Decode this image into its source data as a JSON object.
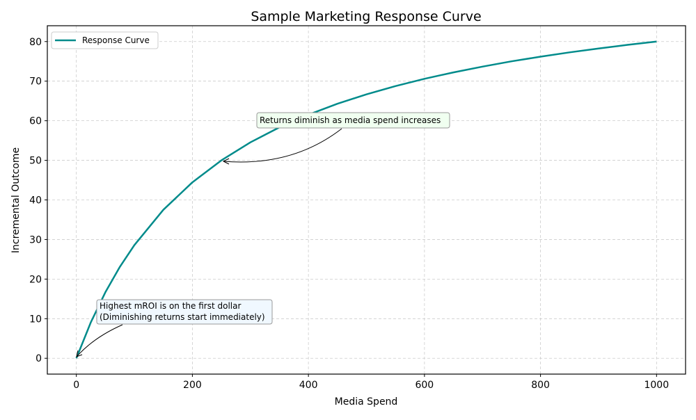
{
  "chart_data": {
    "type": "line",
    "title": "Sample Marketing Response Curve",
    "xlabel": "Media Spend",
    "ylabel": "Incremental Outcome",
    "xlim": [
      -50,
      1050
    ],
    "ylim": [
      -4,
      84
    ],
    "xticks": [
      0,
      200,
      400,
      600,
      800,
      1000
    ],
    "yticks": [
      0,
      10,
      20,
      30,
      40,
      50,
      60,
      70,
      80
    ],
    "grid": true,
    "legend_position": "top-left",
    "series": [
      {
        "name": "Response Curve",
        "color": "#008b8b",
        "x": [
          0,
          25,
          50,
          75,
          100,
          150,
          200,
          250,
          300,
          350,
          400,
          450,
          500,
          550,
          600,
          650,
          700,
          750,
          800,
          850,
          900,
          950,
          1000
        ],
        "y": [
          0,
          9.09,
          16.67,
          23.08,
          28.57,
          37.5,
          44.44,
          50,
          54.55,
          58.33,
          61.54,
          64.29,
          66.67,
          68.75,
          70.59,
          72.22,
          73.68,
          75,
          76.19,
          77.27,
          78.26,
          79.17,
          80
        ]
      }
    ],
    "annotations": [
      {
        "text": "Returns diminish as media spend increases",
        "point": [
          250,
          50
        ],
        "box_color": "#f0fff0"
      },
      {
        "text_lines": [
          "Highest mROI is on the first dollar",
          "(Diminishing returns start immediately)"
        ],
        "point": [
          0,
          0
        ],
        "box_color": "#f0f8ff"
      }
    ]
  }
}
